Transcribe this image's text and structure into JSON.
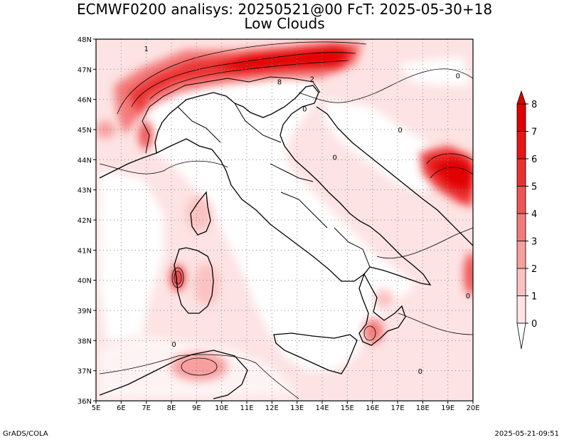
{
  "header": {
    "title_line1": "ECMWF0200 analisys: 20250521@00 FcT: 2025-05-30+18",
    "title_line2": "Low Clouds"
  },
  "footer": {
    "left": "GrADS/COLA",
    "right": "2025-05-21-09:51"
  },
  "map": {
    "lon_range": [
      5,
      20
    ],
    "lat_range": [
      36,
      48
    ],
    "x_ticks": [
      "5E",
      "6E",
      "7E",
      "8E",
      "9E",
      "10E",
      "11E",
      "12E",
      "13E",
      "14E",
      "15E",
      "16E",
      "17E",
      "18E",
      "19E",
      "20E"
    ],
    "y_ticks": [
      "36N",
      "37N",
      "38N",
      "39N",
      "40N",
      "41N",
      "42N",
      "43N",
      "44N",
      "45N",
      "46N",
      "47N",
      "48N"
    ],
    "grid": "dotted",
    "contour_labels": [
      {
        "text": "0",
        "lon": 19.4,
        "lat": 46.7
      },
      {
        "text": "0",
        "lon": 17.1,
        "lat": 44.9
      },
      {
        "text": "0",
        "lon": 14.5,
        "lat": 44.0
      },
      {
        "text": "0",
        "lon": 13.3,
        "lat": 45.6
      },
      {
        "text": "0",
        "lon": 8.1,
        "lat": 37.8
      },
      {
        "text": "0",
        "lon": 19.8,
        "lat": 39.4
      },
      {
        "text": "0",
        "lon": 17.9,
        "lat": 36.9
      },
      {
        "text": "1",
        "lon": 7.0,
        "lat": 47.6
      },
      {
        "text": "8",
        "lon": 12.3,
        "lat": 46.5
      },
      {
        "text": "2",
        "lon": 13.6,
        "lat": 46.6
      }
    ]
  },
  "colorbar": {
    "levels": [
      "0",
      "1",
      "2",
      "3",
      "4",
      "5",
      "6",
      "7",
      "8"
    ],
    "colors": [
      "#ffffff",
      "#fde3e3",
      "#fbc2c2",
      "#f89f9f",
      "#f47a7a",
      "#f05454",
      "#ec3030",
      "#e81414",
      "#e00000"
    ]
  }
}
